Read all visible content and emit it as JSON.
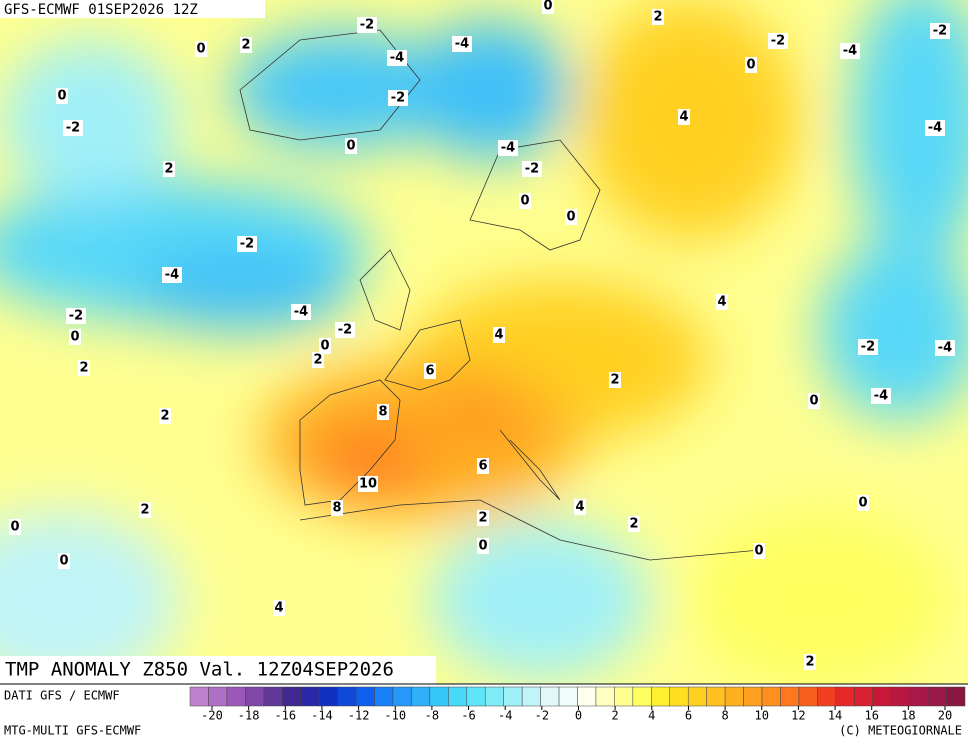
{
  "header": {
    "run": "GFS-ECMWF 01SEP2026 12Z",
    "title": "TMP ANOMALY Z850 Val. 12Z04SEP2026"
  },
  "footer": {
    "left_top": "DATI GFS / ECMWF",
    "left_bottom": "MTG-MULTI GFS-ECMWF",
    "copyright": "(C) METEOGIORNALE"
  },
  "colorbar": {
    "ticks": [
      -20,
      -18,
      -16,
      -14,
      -12,
      -10,
      -8,
      -6,
      -4,
      -2,
      0,
      2,
      4,
      6,
      8,
      10,
      12,
      14,
      16,
      18,
      20
    ],
    "colors": [
      "#c080d0",
      "#b070c8",
      "#9a58b8",
      "#8048a8",
      "#603898",
      "#402890",
      "#2828a8",
      "#1030c0",
      "#1048d8",
      "#1060f0",
      "#1880f8",
      "#2898f8",
      "#30b0f8",
      "#38c8f8",
      "#48d8f8",
      "#60e4f8",
      "#80ecf8",
      "#a0f0f8",
      "#c0f4f8",
      "#e0f8f8",
      "#f0fcfc",
      "#fffff0",
      "#ffffc0",
      "#ffff90",
      "#ffff60",
      "#fff030",
      "#ffe020",
      "#ffd020",
      "#ffc020",
      "#ffb020",
      "#ffa020",
      "#ff9020",
      "#ff7820",
      "#f86020",
      "#f04020",
      "#e82828",
      "#d82030",
      "#c81838",
      "#b81840",
      "#a81848",
      "#981848",
      "#881840"
    ]
  },
  "map_labels": [
    -2,
    0,
    2,
    -4,
    0,
    2,
    -2,
    -4,
    -2,
    0,
    -4,
    -2,
    0,
    -2,
    4,
    -4,
    0,
    -4,
    -2,
    2,
    0,
    0,
    -2,
    -4,
    4,
    -4,
    -2,
    -2,
    0,
    4,
    0,
    2,
    2,
    -2,
    -4,
    6,
    2,
    -4,
    0,
    8,
    2,
    10,
    6,
    0,
    2,
    8,
    4,
    0,
    2,
    2,
    0,
    0,
    0,
    4,
    2
  ]
}
